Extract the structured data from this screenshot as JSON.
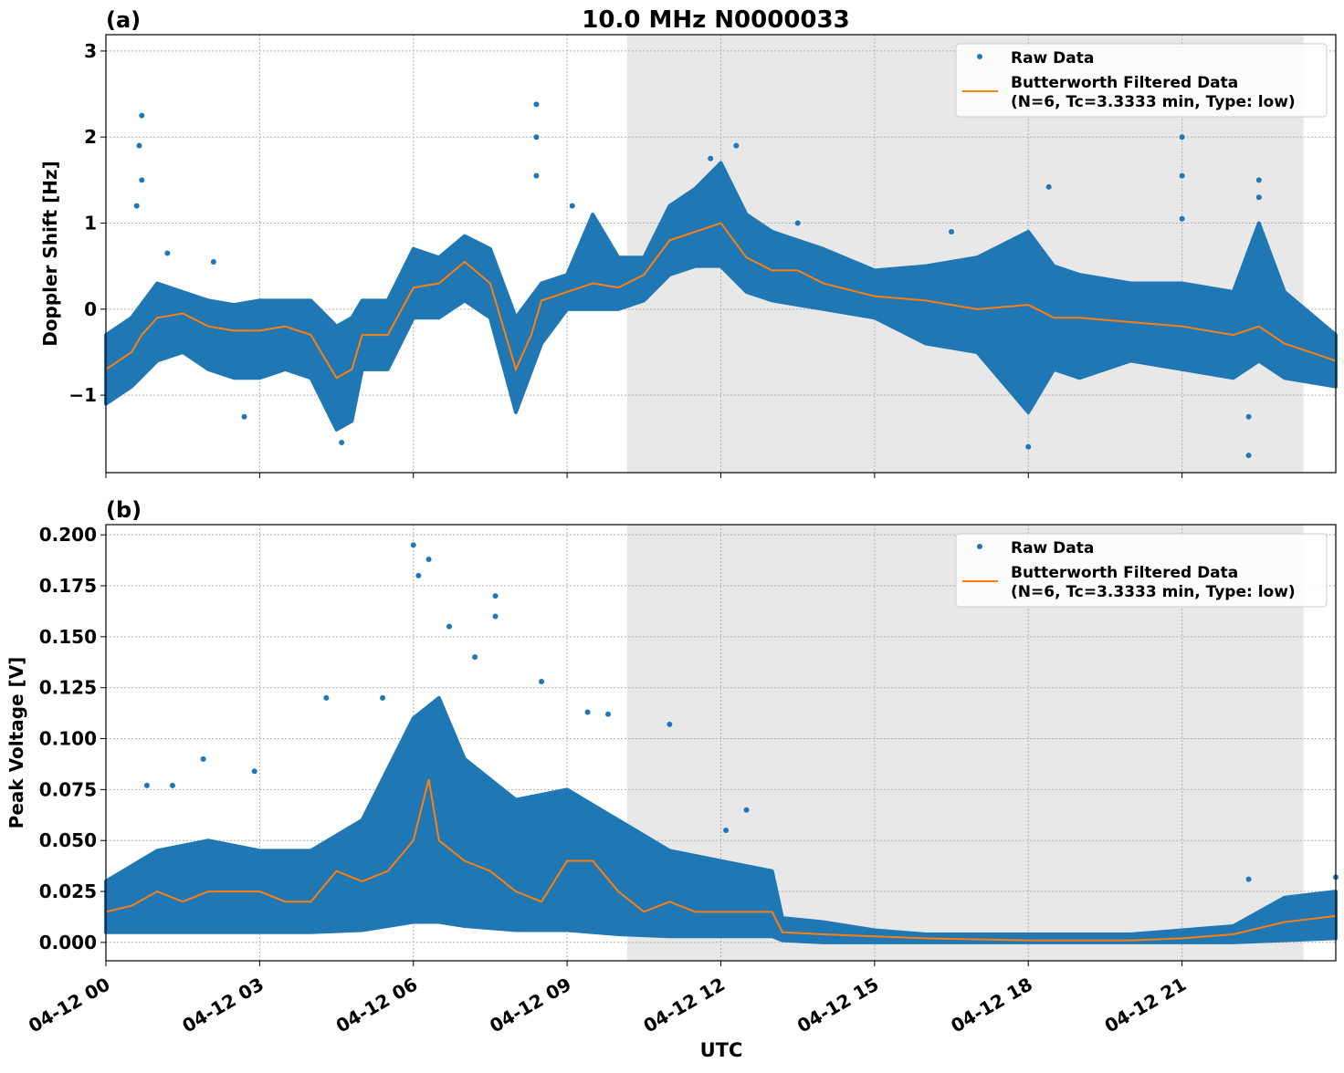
{
  "chart_data": {
    "title": "10.0 MHz N0000033",
    "xlabel": "UTC",
    "x_tick_labels": [
      "04-12 00",
      "04-12 03",
      "04-12 06",
      "04-12 09",
      "04-12 12",
      "04-12 15",
      "04-12 18",
      "04-12 21"
    ],
    "x_ticks_hours": [
      0,
      3,
      6,
      9,
      12,
      15,
      18,
      21
    ],
    "xlim_hours": [
      0,
      24
    ],
    "shaded_span_hours": [
      10.17,
      23.37
    ],
    "colors": {
      "raw": "#1f77b4",
      "filtered": "#ff7f0e",
      "shade": "#e8e8e8"
    },
    "grid": true,
    "legend": {
      "placement": "top-right",
      "raw_label": "Raw Data",
      "filtered_label_1": "Butterworth Filtered Data",
      "filtered_label_2": "(N=6, Tc=3.3333 min, Type: low)"
    },
    "panels": [
      {
        "type": "scatter+line",
        "panel_label": "(a)",
        "ylabel": "Doppler Shift [Hz]",
        "ylim": [
          -1.9,
          3.19
        ],
        "y_ticks": [
          -1,
          0,
          1,
          2,
          3
        ],
        "y_tick_labels": [
          "−1",
          "0",
          "1",
          "2",
          "3"
        ],
        "filtered": {
          "x": [
            0,
            0.5,
            0.7,
            1,
            1.5,
            2,
            2.5,
            3,
            3.5,
            4,
            4.5,
            4.8,
            5,
            5.5,
            6,
            6.5,
            7,
            7.5,
            8,
            8.3,
            8.5,
            9,
            9.5,
            10,
            10.5,
            11,
            11.5,
            12,
            12.5,
            13,
            13.5,
            14,
            15,
            16,
            17,
            18,
            18.5,
            19,
            20,
            21,
            22,
            22.5,
            23,
            24
          ],
          "y": [
            -0.7,
            -0.5,
            -0.3,
            -0.1,
            -0.05,
            -0.2,
            -0.25,
            -0.25,
            -0.2,
            -0.3,
            -0.8,
            -0.7,
            -0.3,
            -0.3,
            0.25,
            0.3,
            0.55,
            0.3,
            -0.7,
            -0.3,
            0.1,
            0.2,
            0.3,
            0.25,
            0.4,
            0.8,
            0.9,
            1.0,
            0.6,
            0.45,
            0.45,
            0.3,
            0.15,
            0.1,
            0.0,
            0.05,
            -0.1,
            -0.1,
            -0.15,
            -0.2,
            -0.3,
            -0.2,
            -0.4,
            -0.6
          ]
        },
        "raw_envelope": {
          "x": [
            0,
            0.5,
            1,
            1.5,
            2,
            2.5,
            3,
            3.5,
            4,
            4.5,
            4.8,
            5,
            5.5,
            6,
            6.5,
            7,
            7.5,
            8,
            8.5,
            9,
            9.5,
            10,
            10.5,
            11,
            11.5,
            12,
            12.5,
            13,
            14,
            15,
            16,
            17,
            18,
            18.5,
            19,
            20,
            21,
            22,
            22.5,
            23,
            24
          ],
          "low": [
            -1.1,
            -0.9,
            -0.6,
            -0.5,
            -0.7,
            -0.8,
            -0.8,
            -0.7,
            -0.8,
            -1.4,
            -1.3,
            -0.7,
            -0.7,
            -0.1,
            -0.1,
            0.1,
            -0.1,
            -1.2,
            -0.4,
            0.0,
            0.0,
            0.0,
            0.1,
            0.4,
            0.5,
            0.5,
            0.2,
            0.1,
            0.0,
            -0.1,
            -0.4,
            -0.5,
            -1.2,
            -0.7,
            -0.8,
            -0.6,
            -0.7,
            -0.8,
            -0.6,
            -0.8,
            -0.9
          ],
          "high": [
            -0.3,
            -0.1,
            0.3,
            0.2,
            0.1,
            0.05,
            0.1,
            0.1,
            0.1,
            -0.2,
            -0.1,
            0.1,
            0.1,
            0.7,
            0.6,
            0.85,
            0.7,
            -0.1,
            0.3,
            0.4,
            1.1,
            0.6,
            0.6,
            1.2,
            1.4,
            1.7,
            1.1,
            0.9,
            0.7,
            0.45,
            0.5,
            0.6,
            0.9,
            0.5,
            0.4,
            0.3,
            0.3,
            0.2,
            1.0,
            0.2,
            -0.3
          ]
        },
        "outliers": {
          "x": [
            0.7,
            0.65,
            0.7,
            0.6,
            8.4,
            8.4,
            8.4,
            21.0,
            21.0,
            21.0,
            22.5,
            22.5,
            18.0,
            22.3,
            22.3,
            4.6,
            2.7,
            18.4,
            11.8,
            12.3,
            9.1,
            13.5,
            16.5,
            1.2,
            2.1
          ],
          "y": [
            2.25,
            1.9,
            1.5,
            1.2,
            2.38,
            2.0,
            1.55,
            2.0,
            1.55,
            1.05,
            1.5,
            1.3,
            -1.6,
            -1.7,
            -1.25,
            -1.55,
            -1.25,
            1.42,
            1.75,
            1.9,
            1.2,
            1.0,
            0.9,
            0.65,
            0.55
          ]
        }
      },
      {
        "type": "scatter+line",
        "panel_label": "(b)",
        "ylabel": "Peak Voltage [V]",
        "ylim": [
          -0.009,
          0.205
        ],
        "y_ticks": [
          0,
          0.025,
          0.05,
          0.075,
          0.1,
          0.125,
          0.15,
          0.175,
          0.2
        ],
        "y_tick_labels": [
          "0.000",
          "0.025",
          "0.050",
          "0.075",
          "0.100",
          "0.125",
          "0.150",
          "0.175",
          "0.200"
        ],
        "filtered": {
          "x": [
            0,
            0.5,
            1,
            1.5,
            2,
            3,
            3.5,
            4,
            4.5,
            5,
            5.5,
            6,
            6.3,
            6.5,
            7,
            7.5,
            8,
            8.5,
            9,
            9.5,
            10,
            10.5,
            11,
            11.5,
            12,
            12.5,
            13,
            13.2,
            14,
            15,
            16,
            18,
            20,
            21,
            22,
            23,
            24
          ],
          "y": [
            0.015,
            0.018,
            0.025,
            0.02,
            0.025,
            0.025,
            0.02,
            0.02,
            0.035,
            0.03,
            0.035,
            0.05,
            0.08,
            0.05,
            0.04,
            0.035,
            0.025,
            0.02,
            0.04,
            0.04,
            0.025,
            0.015,
            0.02,
            0.015,
            0.015,
            0.015,
            0.015,
            0.005,
            0.004,
            0.003,
            0.002,
            0.001,
            0.001,
            0.002,
            0.004,
            0.01,
            0.013
          ]
        },
        "raw_envelope": {
          "x": [
            0,
            1,
            2,
            3,
            4,
            5,
            6,
            6.5,
            7,
            8,
            9,
            10,
            11,
            12,
            13,
            13.2,
            14,
            15,
            16,
            20,
            22,
            23,
            24
          ],
          "low": [
            0.005,
            0.005,
            0.005,
            0.005,
            0.005,
            0.006,
            0.01,
            0.01,
            0.008,
            0.006,
            0.006,
            0.004,
            0.003,
            0.003,
            0.003,
            0.001,
            0,
            0,
            0,
            0,
            0,
            0.001,
            0.002
          ],
          "high": [
            0.03,
            0.045,
            0.05,
            0.045,
            0.045,
            0.06,
            0.11,
            0.12,
            0.09,
            0.07,
            0.075,
            0.06,
            0.045,
            0.04,
            0.035,
            0.012,
            0.01,
            0.006,
            0.004,
            0.004,
            0.008,
            0.022,
            0.025
          ]
        },
        "outliers": {
          "x": [
            6.0,
            6.3,
            6.1,
            7.6,
            7.6,
            8.5,
            9.4,
            9.8,
            11.0,
            4.3,
            5.4,
            1.9,
            0.8,
            1.3,
            2.9,
            12.5,
            12.1,
            22.3,
            24,
            6.7,
            7.2
          ],
          "y": [
            0.195,
            0.188,
            0.18,
            0.17,
            0.16,
            0.128,
            0.113,
            0.112,
            0.107,
            0.12,
            0.12,
            0.09,
            0.077,
            0.077,
            0.084,
            0.065,
            0.055,
            0.031,
            0.032,
            0.155,
            0.14
          ]
        }
      }
    ]
  }
}
